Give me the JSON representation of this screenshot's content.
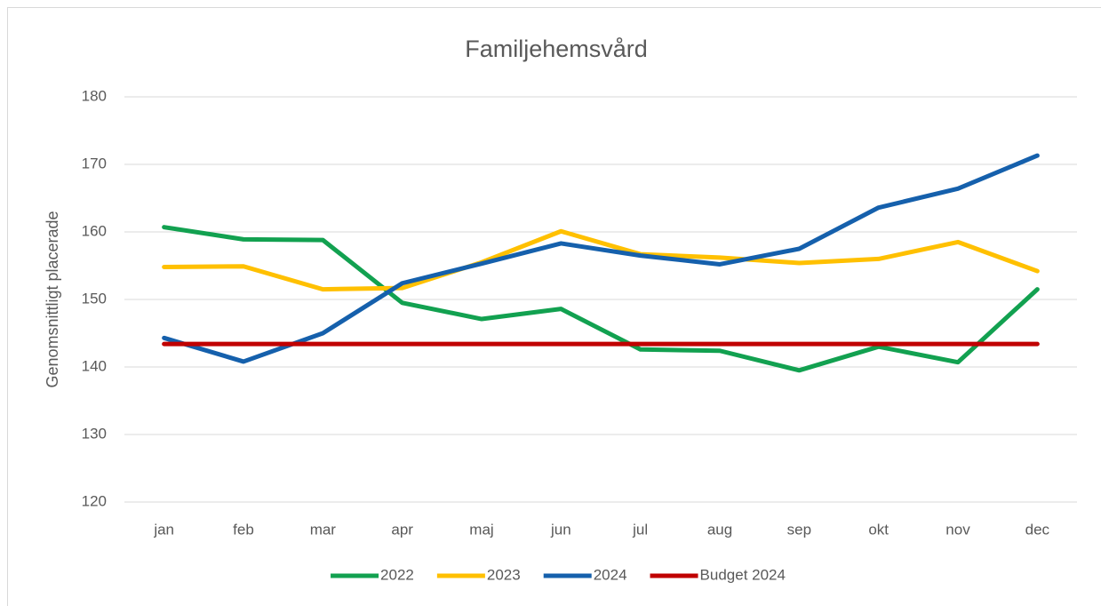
{
  "chart_data": {
    "type": "line",
    "title": "Familjehemsvård",
    "y_label": "Genomsnittligt placerade",
    "categories": [
      "jan",
      "feb",
      "mar",
      "apr",
      "maj",
      "jun",
      "jul",
      "aug",
      "sep",
      "okt",
      "nov",
      "dec"
    ],
    "series": [
      {
        "name": "2022",
        "color": "#12a150",
        "values": [
          160.7,
          158.9,
          158.8,
          149.5,
          147.1,
          148.6,
          142.6,
          142.4,
          139.5,
          143,
          140.7,
          151.5
        ]
      },
      {
        "name": "2023",
        "color": "#ffc000",
        "values": [
          154.8,
          154.9,
          151.5,
          151.7,
          155.5,
          160.1,
          156.7,
          156.2,
          155.4,
          156,
          158.5,
          154.2
        ]
      },
      {
        "name": "2024",
        "color": "#1560ac",
        "values": [
          144.3,
          140.8,
          145,
          152.4,
          155.3,
          158.3,
          156.5,
          155.2,
          157.5,
          163.6,
          166.4,
          171.3
        ]
      },
      {
        "name": "Budget 2024",
        "color": "#c00000",
        "values": [
          143.4,
          143.4,
          143.4,
          143.4,
          143.4,
          143.4,
          143.4,
          143.4,
          143.4,
          143.4,
          143.4,
          143.4
        ]
      }
    ],
    "ylim": [
      120,
      180
    ],
    "yticks": [
      120,
      130,
      140,
      150,
      160,
      170,
      180
    ],
    "grid": true,
    "legend": "bottom"
  }
}
